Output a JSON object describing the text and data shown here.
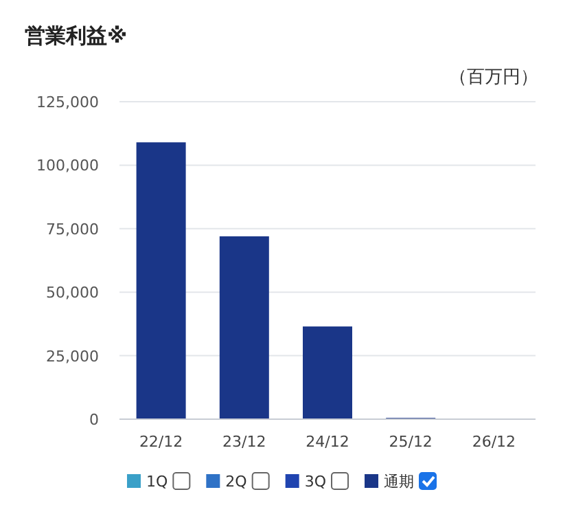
{
  "chart_data": {
    "type": "bar",
    "title": "営業利益※",
    "ylabel": "（百万円）",
    "categories": [
      "22/12",
      "23/12",
      "24/12",
      "25/12",
      "26/12"
    ],
    "series": [
      {
        "name": "1Q",
        "color": "#3aa0c8",
        "values": [
          null,
          null,
          null,
          null,
          null
        ]
      },
      {
        "name": "2Q",
        "color": "#2f72c6",
        "values": [
          null,
          null,
          null,
          null,
          null
        ]
      },
      {
        "name": "3Q",
        "color": "#2044b0",
        "values": [
          null,
          null,
          null,
          null,
          null
        ]
      },
      {
        "name": "通期",
        "color": "#1a3688",
        "values": [
          109000,
          72000,
          36500,
          500,
          null
        ]
      }
    ],
    "ylim": [
      0,
      125000
    ],
    "yticks": [
      0,
      {
        "value": 25000,
        "label": "25,000"
      },
      {
        "value": 50000,
        "label": "50,000"
      },
      {
        "value": 75000,
        "label": "75,000"
      },
      {
        "value": 100000,
        "label": "100,000"
      },
      {
        "value": 125000,
        "label": "125,000"
      }
    ],
    "grid": "y",
    "legend": "bottom"
  }
}
